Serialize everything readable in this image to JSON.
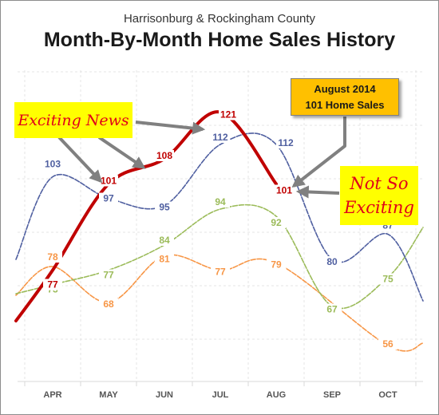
{
  "header": {
    "subtitle": "Harrisonburg & Rockingham County",
    "title": "Month-By-Month Home Sales History"
  },
  "callouts": {
    "exciting_news": "Exciting News",
    "not_so_exciting": "Not So Exciting",
    "august_box_line1": "August 2014",
    "august_box_line2": "101 Home Sales"
  },
  "chart_data": {
    "type": "line",
    "categories": [
      "APR",
      "MAY",
      "JUN",
      "JUL",
      "AUG",
      "SEP",
      "OCT"
    ],
    "grid": true,
    "series": [
      {
        "color": "#c00000",
        "values": [
          77,
          101,
          108,
          121,
          101,
          null,
          null
        ]
      },
      {
        "color": "#4f5fa0",
        "values": [
          103,
          97,
          95,
          112,
          112,
          80,
          87
        ]
      },
      {
        "color": "#9bbb59",
        "values": [
          73,
          77,
          84,
          94,
          92,
          67,
          75
        ]
      },
      {
        "color": "#f79646",
        "values": [
          78,
          68,
          81,
          77,
          79,
          null,
          56
        ]
      }
    ]
  }
}
